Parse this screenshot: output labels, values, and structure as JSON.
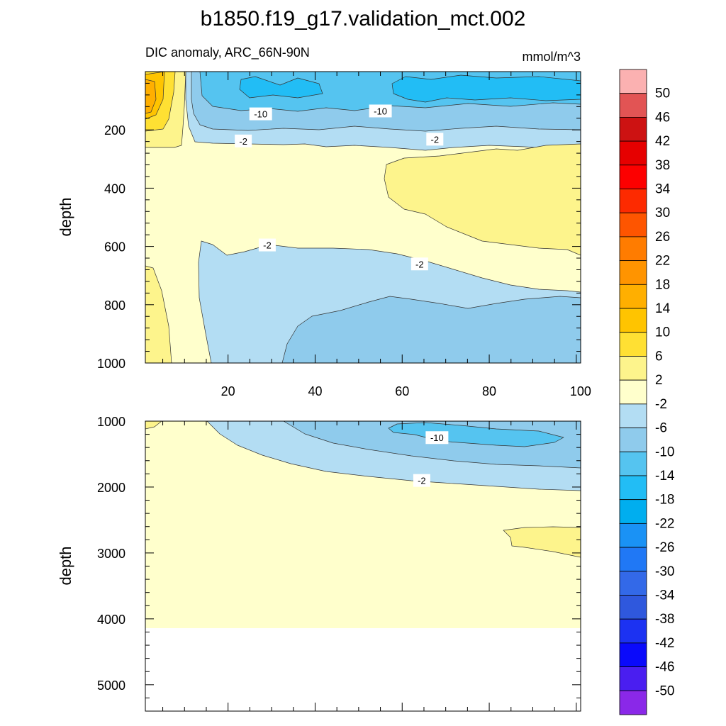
{
  "chart_data": {
    "type": "contour",
    "title": "b1850.f19_g17.validation_mct.002",
    "subtitle_left": "DIC anomaly, ARC_66N-90N",
    "subtitle_right": "mmol/m^3",
    "x_ticks": [
      "20",
      "40",
      "60",
      "80",
      "100"
    ],
    "x_tick_values": [
      20,
      40,
      60,
      80,
      100
    ],
    "xlim": [
      1,
      101
    ],
    "top_panel": {
      "ylabel": "depth",
      "ylim": [
        0,
        1000
      ],
      "y_ticks": [
        "200",
        "400",
        "600",
        "800",
        "1000"
      ],
      "y_tick_values": [
        200,
        400,
        600,
        800,
        1000
      ],
      "contour_labels": [
        {
          "text": "-10",
          "x": 27.5,
          "y": 145
        },
        {
          "text": "-10",
          "x": 55,
          "y": 135
        },
        {
          "text": "-2",
          "x": 23.5,
          "y": 238
        },
        {
          "text": "-2",
          "x": 67.5,
          "y": 232
        },
        {
          "text": "-2",
          "x": 29,
          "y": 595
        },
        {
          "text": "-2",
          "x": 64,
          "y": 660
        }
      ]
    },
    "bottom_panel": {
      "ylabel": "depth",
      "ylim": [
        1000,
        5400
      ],
      "y_ticks": [
        "1000",
        "2000",
        "3000",
        "4000",
        "5000"
      ],
      "y_tick_values": [
        1000,
        2000,
        3000,
        4000,
        5000
      ],
      "contour_labels": [
        {
          "text": "-10",
          "x": 68,
          "y": 1250
        },
        {
          "text": "-2",
          "x": 64.5,
          "y": 1900
        }
      ]
    },
    "colorbar": {
      "labels": [
        "50",
        "46",
        "42",
        "38",
        "34",
        "30",
        "26",
        "22",
        "18",
        "14",
        "10",
        "6",
        "2",
        "-2",
        "-6",
        "-10",
        "-14",
        "-18",
        "-22",
        "-26",
        "-30",
        "-34",
        "-38",
        "-42",
        "-46",
        "-50"
      ],
      "colors": [
        "#fbb1b1",
        "#e25454",
        "#cd1212",
        "#e60000",
        "#fd0000",
        "#fd2a00",
        "#fe5500",
        "#ff7c00",
        "#ff9400",
        "#ffaf00",
        "#ffc400",
        "#ffe033",
        "#fdf48c",
        "#ffffcc",
        "#b3ddf3",
        "#8fcbec",
        "#55c4f0",
        "#22bdf5",
        "#00aeef",
        "#1a92f5",
        "#2078f5",
        "#3369e8",
        "#2f58dd",
        "#1c32f2",
        "#0a0afb",
        "#4a1ef0",
        "#8a28e8"
      ]
    }
  }
}
